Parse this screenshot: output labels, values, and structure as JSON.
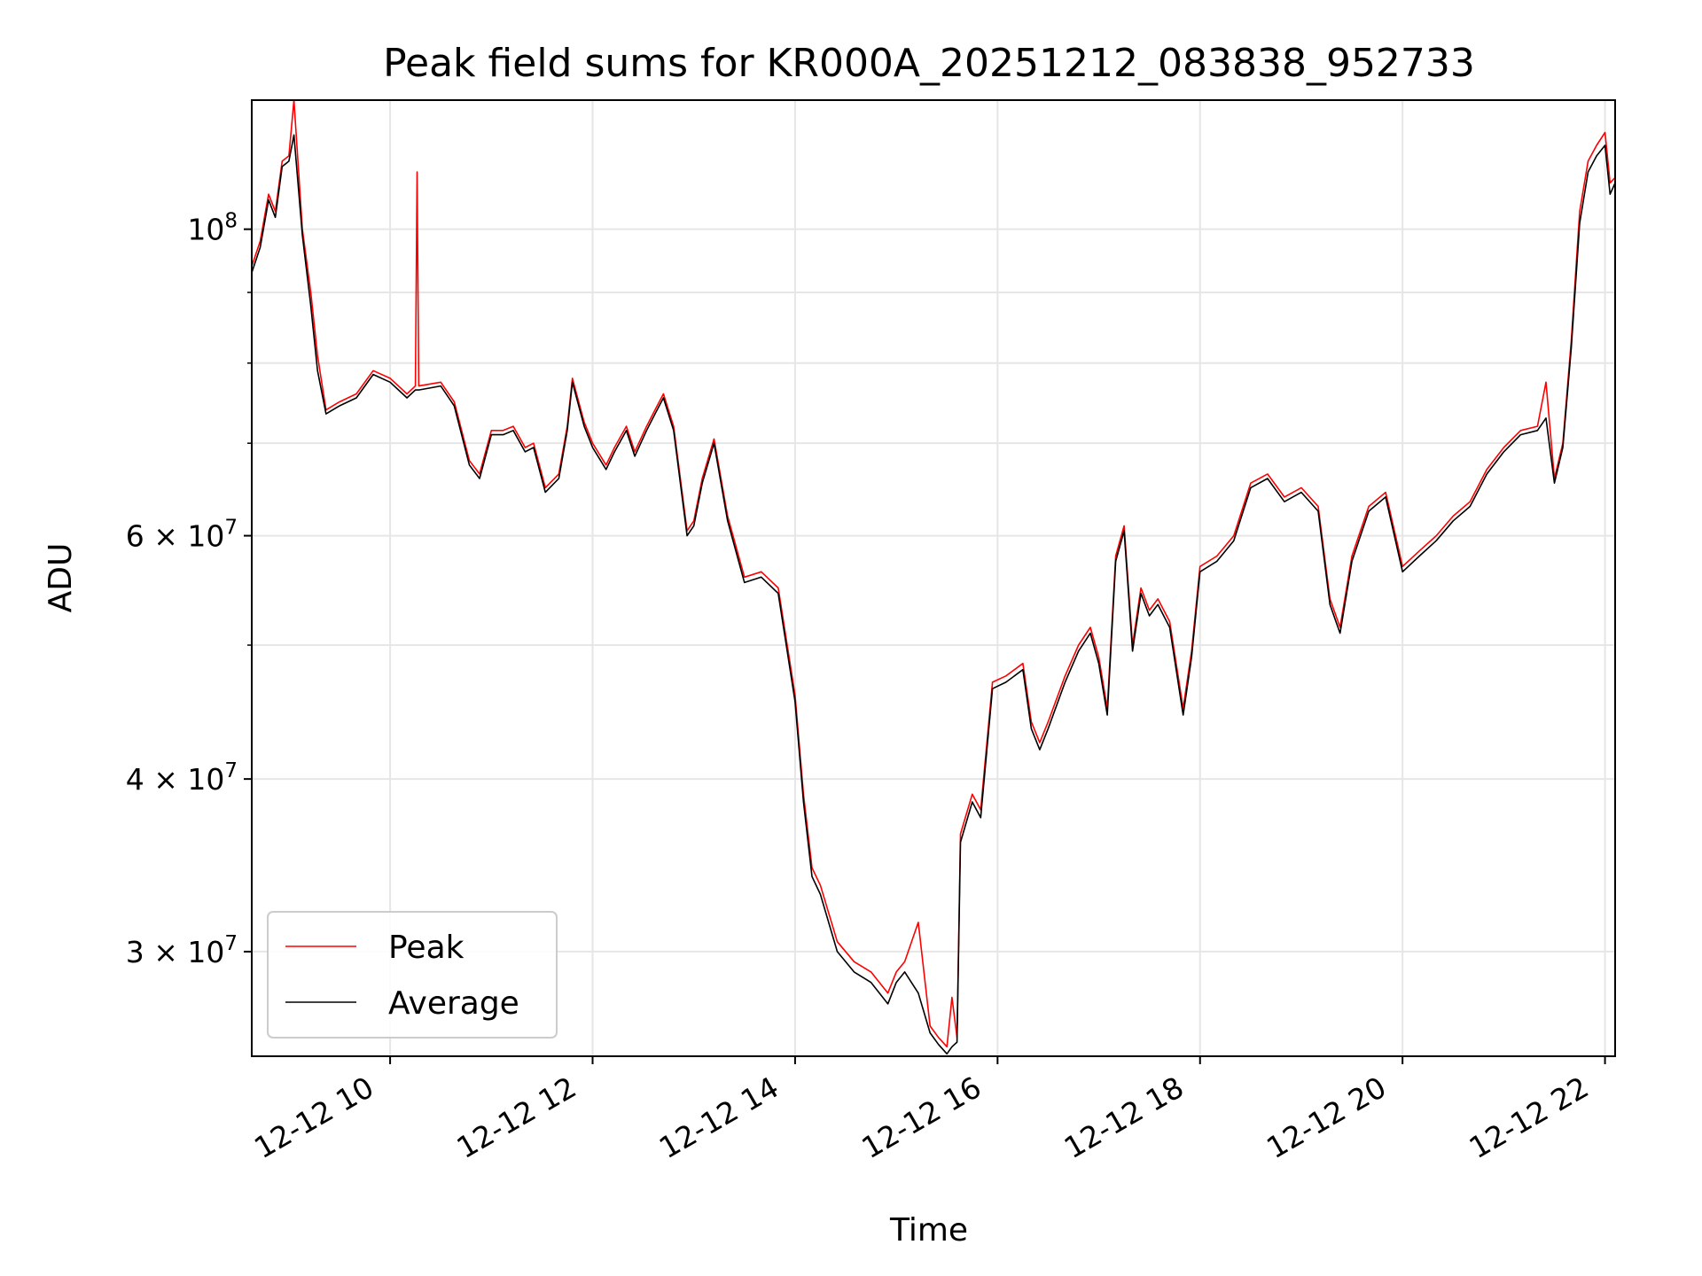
{
  "chart_data": {
    "type": "line",
    "title": "Peak field sums for KR000A_20251212_083838_952733",
    "xlabel": "Time",
    "ylabel": "ADU",
    "yscale": "log",
    "xlim": [
      "2025-12-12 08:38",
      "2025-12-12 22:06"
    ],
    "ylim": [
      25200000,
      124000000
    ],
    "grid": true,
    "legend_position": "lower-left",
    "x_tick_labels": [
      "12-12 10",
      "12-12 12",
      "12-12 14",
      "12-12 16",
      "12-12 18",
      "12-12 20",
      "12-12 22"
    ],
    "x_tick_values": [
      "2025-12-12 10:00",
      "2025-12-12 12:00",
      "2025-12-12 14:00",
      "2025-12-12 16:00",
      "2025-12-12 18:00",
      "2025-12-12 20:00",
      "2025-12-12 22:00"
    ],
    "y_ticks": [
      {
        "value": 30000000,
        "mantissa": "3",
        "exponent": "7"
      },
      {
        "value": 40000000,
        "mantissa": "4",
        "exponent": "7"
      },
      {
        "value": 60000000,
        "mantissa": "6",
        "exponent": "7"
      },
      {
        "value": 100000000,
        "mantissa": "",
        "exponent": "8"
      }
    ],
    "y_minor_ticks": [
      50000000,
      70000000,
      80000000,
      90000000
    ],
    "colors": {
      "peak": "#ff0000",
      "average": "#000000"
    },
    "series": [
      {
        "name": "Peak",
        "values": [
          [
            "08:38",
            94000000
          ],
          [
            "08:43",
            98000000
          ],
          [
            "08:48",
            106000000
          ],
          [
            "08:52",
            103000000
          ],
          [
            "08:56",
            112000000
          ],
          [
            "09:00",
            113000000
          ],
          [
            "09:03",
            124000000
          ],
          [
            "09:08",
            100000000
          ],
          [
            "09:13",
            90000000
          ],
          [
            "09:17",
            81000000
          ],
          [
            "09:22",
            74000000
          ],
          [
            "09:30",
            75000000
          ],
          [
            "09:40",
            76000000
          ],
          [
            "09:50",
            79000000
          ],
          [
            "10:00",
            78000000
          ],
          [
            "10:10",
            76000000
          ],
          [
            "10:15",
            77000000
          ],
          [
            "10:16",
            110000000
          ],
          [
            "10:17",
            77000000
          ],
          [
            "10:30",
            77500000
          ],
          [
            "10:38",
            75000000
          ],
          [
            "10:47",
            68000000
          ],
          [
            "10:53",
            66500000
          ],
          [
            "11:00",
            71500000
          ],
          [
            "11:07",
            71500000
          ],
          [
            "11:13",
            72000000
          ],
          [
            "11:20",
            69500000
          ],
          [
            "11:25",
            70000000
          ],
          [
            "11:32",
            65000000
          ],
          [
            "11:40",
            66500000
          ],
          [
            "11:45",
            72000000
          ],
          [
            "11:48",
            78000000
          ],
          [
            "11:55",
            72500000
          ],
          [
            "12:00",
            70000000
          ],
          [
            "12:08",
            67500000
          ],
          [
            "12:13",
            69500000
          ],
          [
            "12:20",
            72000000
          ],
          [
            "12:25",
            69000000
          ],
          [
            "12:32",
            72000000
          ],
          [
            "12:37",
            74000000
          ],
          [
            "12:42",
            76000000
          ],
          [
            "12:48",
            72000000
          ],
          [
            "12:56",
            60500000
          ],
          [
            "13:00",
            61500000
          ],
          [
            "13:05",
            66000000
          ],
          [
            "13:12",
            70500000
          ],
          [
            "13:20",
            62000000
          ],
          [
            "13:30",
            56000000
          ],
          [
            "13:40",
            56500000
          ],
          [
            "13:50",
            55000000
          ],
          [
            "14:00",
            46000000
          ],
          [
            "14:05",
            39000000
          ],
          [
            "14:10",
            34500000
          ],
          [
            "14:15",
            33500000
          ],
          [
            "14:25",
            30500000
          ],
          [
            "14:35",
            29500000
          ],
          [
            "14:45",
            29000000
          ],
          [
            "14:55",
            28000000
          ],
          [
            "15:00",
            29000000
          ],
          [
            "15:05",
            29500000
          ],
          [
            "15:13",
            31500000
          ],
          [
            "15:20",
            26500000
          ],
          [
            "15:25",
            26000000
          ],
          [
            "15:30",
            25600000
          ],
          [
            "15:33",
            27800000
          ],
          [
            "15:36",
            26000000
          ],
          [
            "15:38",
            36500000
          ],
          [
            "15:45",
            39000000
          ],
          [
            "15:50",
            38000000
          ],
          [
            "15:57",
            47000000
          ],
          [
            "16:05",
            47500000
          ],
          [
            "16:15",
            48500000
          ],
          [
            "16:20",
            44000000
          ],
          [
            "16:25",
            42500000
          ],
          [
            "16:30",
            44000000
          ],
          [
            "16:40",
            47500000
          ],
          [
            "16:48",
            50000000
          ],
          [
            "16:55",
            51500000
          ],
          [
            "17:00",
            49000000
          ],
          [
            "17:05",
            45000000
          ],
          [
            "17:10",
            58000000
          ],
          [
            "17:15",
            61000000
          ],
          [
            "17:20",
            50000000
          ],
          [
            "17:25",
            55000000
          ],
          [
            "17:30",
            53000000
          ],
          [
            "17:35",
            54000000
          ],
          [
            "17:42",
            52000000
          ],
          [
            "17:50",
            45000000
          ],
          [
            "17:55",
            49500000
          ],
          [
            "18:00",
            57000000
          ],
          [
            "18:10",
            58000000
          ],
          [
            "18:20",
            60000000
          ],
          [
            "18:30",
            65500000
          ],
          [
            "18:40",
            66500000
          ],
          [
            "18:50",
            64000000
          ],
          [
            "19:00",
            65000000
          ],
          [
            "19:10",
            63000000
          ],
          [
            "19:17",
            54000000
          ],
          [
            "19:23",
            51500000
          ],
          [
            "19:30",
            58000000
          ],
          [
            "19:40",
            63000000
          ],
          [
            "19:50",
            64500000
          ],
          [
            "20:00",
            57000000
          ],
          [
            "20:10",
            58500000
          ],
          [
            "20:20",
            60000000
          ],
          [
            "20:30",
            62000000
          ],
          [
            "20:40",
            63500000
          ],
          [
            "20:50",
            67000000
          ],
          [
            "21:00",
            69500000
          ],
          [
            "21:10",
            71500000
          ],
          [
            "21:20",
            72000000
          ],
          [
            "21:25",
            77500000
          ],
          [
            "21:30",
            66000000
          ],
          [
            "21:35",
            70000000
          ],
          [
            "21:40",
            83000000
          ],
          [
            "21:45",
            103000000
          ],
          [
            "21:50",
            112000000
          ],
          [
            "21:55",
            115000000
          ],
          [
            "22:00",
            117500000
          ],
          [
            "22:03",
            108000000
          ],
          [
            "22:06",
            109000000
          ]
        ]
      },
      {
        "name": "Average",
        "values": [
          [
            "08:38",
            93000000
          ],
          [
            "08:43",
            97000000
          ],
          [
            "08:48",
            105000000
          ],
          [
            "08:52",
            102000000
          ],
          [
            "08:56",
            111000000
          ],
          [
            "09:00",
            112000000
          ],
          [
            "09:03",
            117000000
          ],
          [
            "09:08",
            99000000
          ],
          [
            "09:13",
            88000000
          ],
          [
            "09:17",
            79000000
          ],
          [
            "09:22",
            73500000
          ],
          [
            "09:30",
            74500000
          ],
          [
            "09:40",
            75500000
          ],
          [
            "09:50",
            78500000
          ],
          [
            "10:00",
            77500000
          ],
          [
            "10:10",
            75500000
          ],
          [
            "10:15",
            76500000
          ],
          [
            "10:16",
            76500000
          ],
          [
            "10:17",
            76500000
          ],
          [
            "10:30",
            77000000
          ],
          [
            "10:38",
            74500000
          ],
          [
            "10:47",
            67500000
          ],
          [
            "10:53",
            66000000
          ],
          [
            "11:00",
            71000000
          ],
          [
            "11:07",
            71000000
          ],
          [
            "11:13",
            71500000
          ],
          [
            "11:20",
            69000000
          ],
          [
            "11:25",
            69500000
          ],
          [
            "11:32",
            64500000
          ],
          [
            "11:40",
            66000000
          ],
          [
            "11:45",
            71500000
          ],
          [
            "11:48",
            77500000
          ],
          [
            "11:55",
            72000000
          ],
          [
            "12:00",
            69500000
          ],
          [
            "12:08",
            67000000
          ],
          [
            "12:13",
            69000000
          ],
          [
            "12:20",
            71500000
          ],
          [
            "12:25",
            68500000
          ],
          [
            "12:32",
            71500000
          ],
          [
            "12:37",
            73500000
          ],
          [
            "12:42",
            75500000
          ],
          [
            "12:48",
            71500000
          ],
          [
            "12:56",
            60000000
          ],
          [
            "13:00",
            61000000
          ],
          [
            "13:05",
            65500000
          ],
          [
            "13:12",
            70000000
          ],
          [
            "13:20",
            61500000
          ],
          [
            "13:30",
            55500000
          ],
          [
            "13:40",
            56000000
          ],
          [
            "13:50",
            54500000
          ],
          [
            "14:00",
            45500000
          ],
          [
            "14:05",
            38500000
          ],
          [
            "14:10",
            34000000
          ],
          [
            "14:15",
            33000000
          ],
          [
            "14:25",
            30000000
          ],
          [
            "14:35",
            29000000
          ],
          [
            "14:45",
            28500000
          ],
          [
            "14:55",
            27500000
          ],
          [
            "15:00",
            28500000
          ],
          [
            "15:05",
            29000000
          ],
          [
            "15:13",
            28000000
          ],
          [
            "15:20",
            26200000
          ],
          [
            "15:25",
            25700000
          ],
          [
            "15:30",
            25300000
          ],
          [
            "15:33",
            25600000
          ],
          [
            "15:36",
            25800000
          ],
          [
            "15:38",
            36000000
          ],
          [
            "15:45",
            38500000
          ],
          [
            "15:50",
            37500000
          ],
          [
            "15:57",
            46500000
          ],
          [
            "16:05",
            47000000
          ],
          [
            "16:15",
            48000000
          ],
          [
            "16:20",
            43500000
          ],
          [
            "16:25",
            42000000
          ],
          [
            "16:30",
            43500000
          ],
          [
            "16:40",
            47000000
          ],
          [
            "16:48",
            49500000
          ],
          [
            "16:55",
            51000000
          ],
          [
            "17:00",
            48500000
          ],
          [
            "17:05",
            44500000
          ],
          [
            "17:10",
            57500000
          ],
          [
            "17:15",
            60500000
          ],
          [
            "17:20",
            49500000
          ],
          [
            "17:25",
            54500000
          ],
          [
            "17:30",
            52500000
          ],
          [
            "17:35",
            53500000
          ],
          [
            "17:42",
            51500000
          ],
          [
            "17:50",
            44500000
          ],
          [
            "17:55",
            49000000
          ],
          [
            "18:00",
            56500000
          ],
          [
            "18:10",
            57500000
          ],
          [
            "18:20",
            59500000
          ],
          [
            "18:30",
            65000000
          ],
          [
            "18:40",
            66000000
          ],
          [
            "18:50",
            63500000
          ],
          [
            "19:00",
            64500000
          ],
          [
            "19:10",
            62500000
          ],
          [
            "19:17",
            53500000
          ],
          [
            "19:23",
            51000000
          ],
          [
            "19:30",
            57500000
          ],
          [
            "19:40",
            62500000
          ],
          [
            "19:50",
            64000000
          ],
          [
            "20:00",
            56500000
          ],
          [
            "20:10",
            58000000
          ],
          [
            "20:20",
            59500000
          ],
          [
            "20:30",
            61500000
          ],
          [
            "20:40",
            63000000
          ],
          [
            "20:50",
            66500000
          ],
          [
            "21:00",
            69000000
          ],
          [
            "21:10",
            71000000
          ],
          [
            "21:20",
            71500000
          ],
          [
            "21:25",
            73000000
          ],
          [
            "21:30",
            65500000
          ],
          [
            "21:35",
            69500000
          ],
          [
            "21:40",
            82000000
          ],
          [
            "21:45",
            101000000
          ],
          [
            "21:50",
            110000000
          ],
          [
            "21:55",
            113000000
          ],
          [
            "22:00",
            115000000
          ],
          [
            "22:03",
            106000000
          ],
          [
            "22:06",
            108000000
          ]
        ]
      }
    ]
  }
}
